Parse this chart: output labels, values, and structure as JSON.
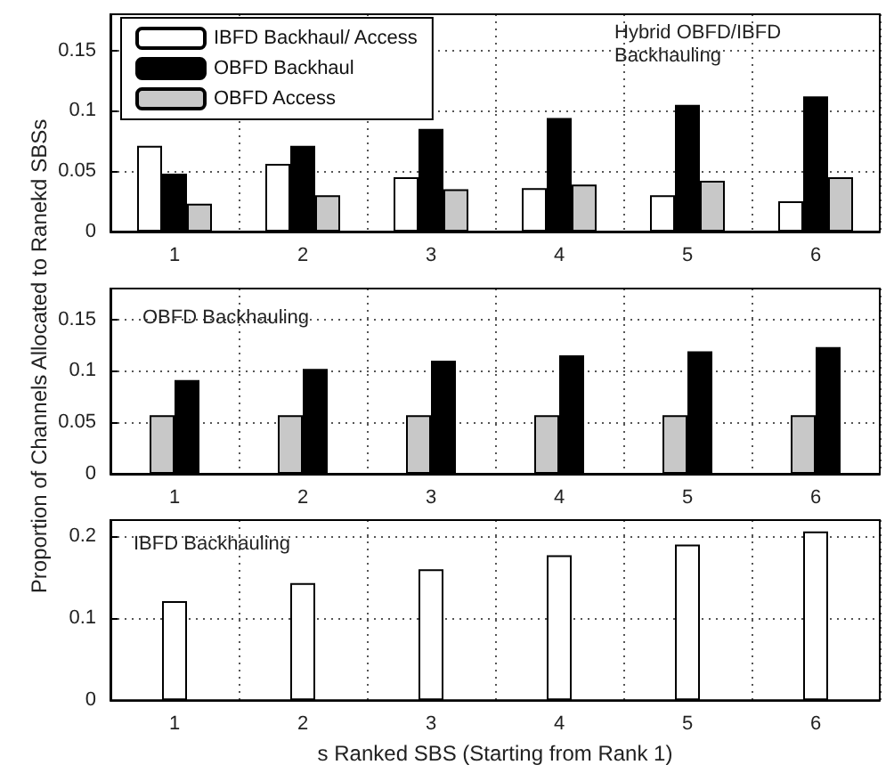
{
  "chart_data": [
    {
      "type": "bar",
      "categories": [
        "1",
        "2",
        "3",
        "4",
        "5",
        "6"
      ],
      "annotations": [
        "Hybrid OBFD/IBFD Backhauling"
      ],
      "ylim": [
        0,
        0.18
      ],
      "yticks": [
        0,
        0.05,
        0.1,
        0.15
      ],
      "grid": true,
      "legend": "top left",
      "series": [
        {
          "name": "IBFD Backhaul/ Access",
          "color": "#ffffff",
          "values": [
            0.071,
            0.056,
            0.045,
            0.036,
            0.03,
            0.025
          ]
        },
        {
          "name": "OBFD Backhaul",
          "color": "#000000",
          "values": [
            0.048,
            0.071,
            0.085,
            0.094,
            0.105,
            0.112
          ]
        },
        {
          "name": "OBFD Access",
          "color": "#c8c8c8",
          "values": [
            0.023,
            0.03,
            0.035,
            0.039,
            0.042,
            0.045
          ]
        }
      ]
    },
    {
      "type": "bar",
      "categories": [
        "1",
        "2",
        "3",
        "4",
        "5",
        "6"
      ],
      "ylabel": "Proportion of Channels Allocated to Ranekd SBSs",
      "annotations": [
        "OBFD Backhauling"
      ],
      "ylim": [
        0,
        0.18
      ],
      "yticks": [
        0,
        0.05,
        0.1,
        0.15
      ],
      "grid": true,
      "series": [
        {
          "color": "#c8c8c8",
          "values": [
            0.057,
            0.057,
            0.057,
            0.057,
            0.057,
            0.057
          ]
        },
        {
          "color": "#000000",
          "values": [
            0.091,
            0.102,
            0.11,
            0.115,
            0.119,
            0.123
          ]
        }
      ]
    },
    {
      "type": "bar",
      "categories": [
        "1",
        "2",
        "3",
        "4",
        "5",
        "6"
      ],
      "xlabel": "s Ranked SBS (Starting from Rank 1)",
      "annotations": [
        "IBFD Backhauling"
      ],
      "ylim": [
        0,
        0.22
      ],
      "yticks": [
        0,
        0.1,
        0.2
      ],
      "grid": true,
      "series": [
        {
          "color": "#ffffff",
          "values": [
            0.121,
            0.143,
            0.16,
            0.177,
            0.19,
            0.206
          ]
        }
      ]
    }
  ]
}
